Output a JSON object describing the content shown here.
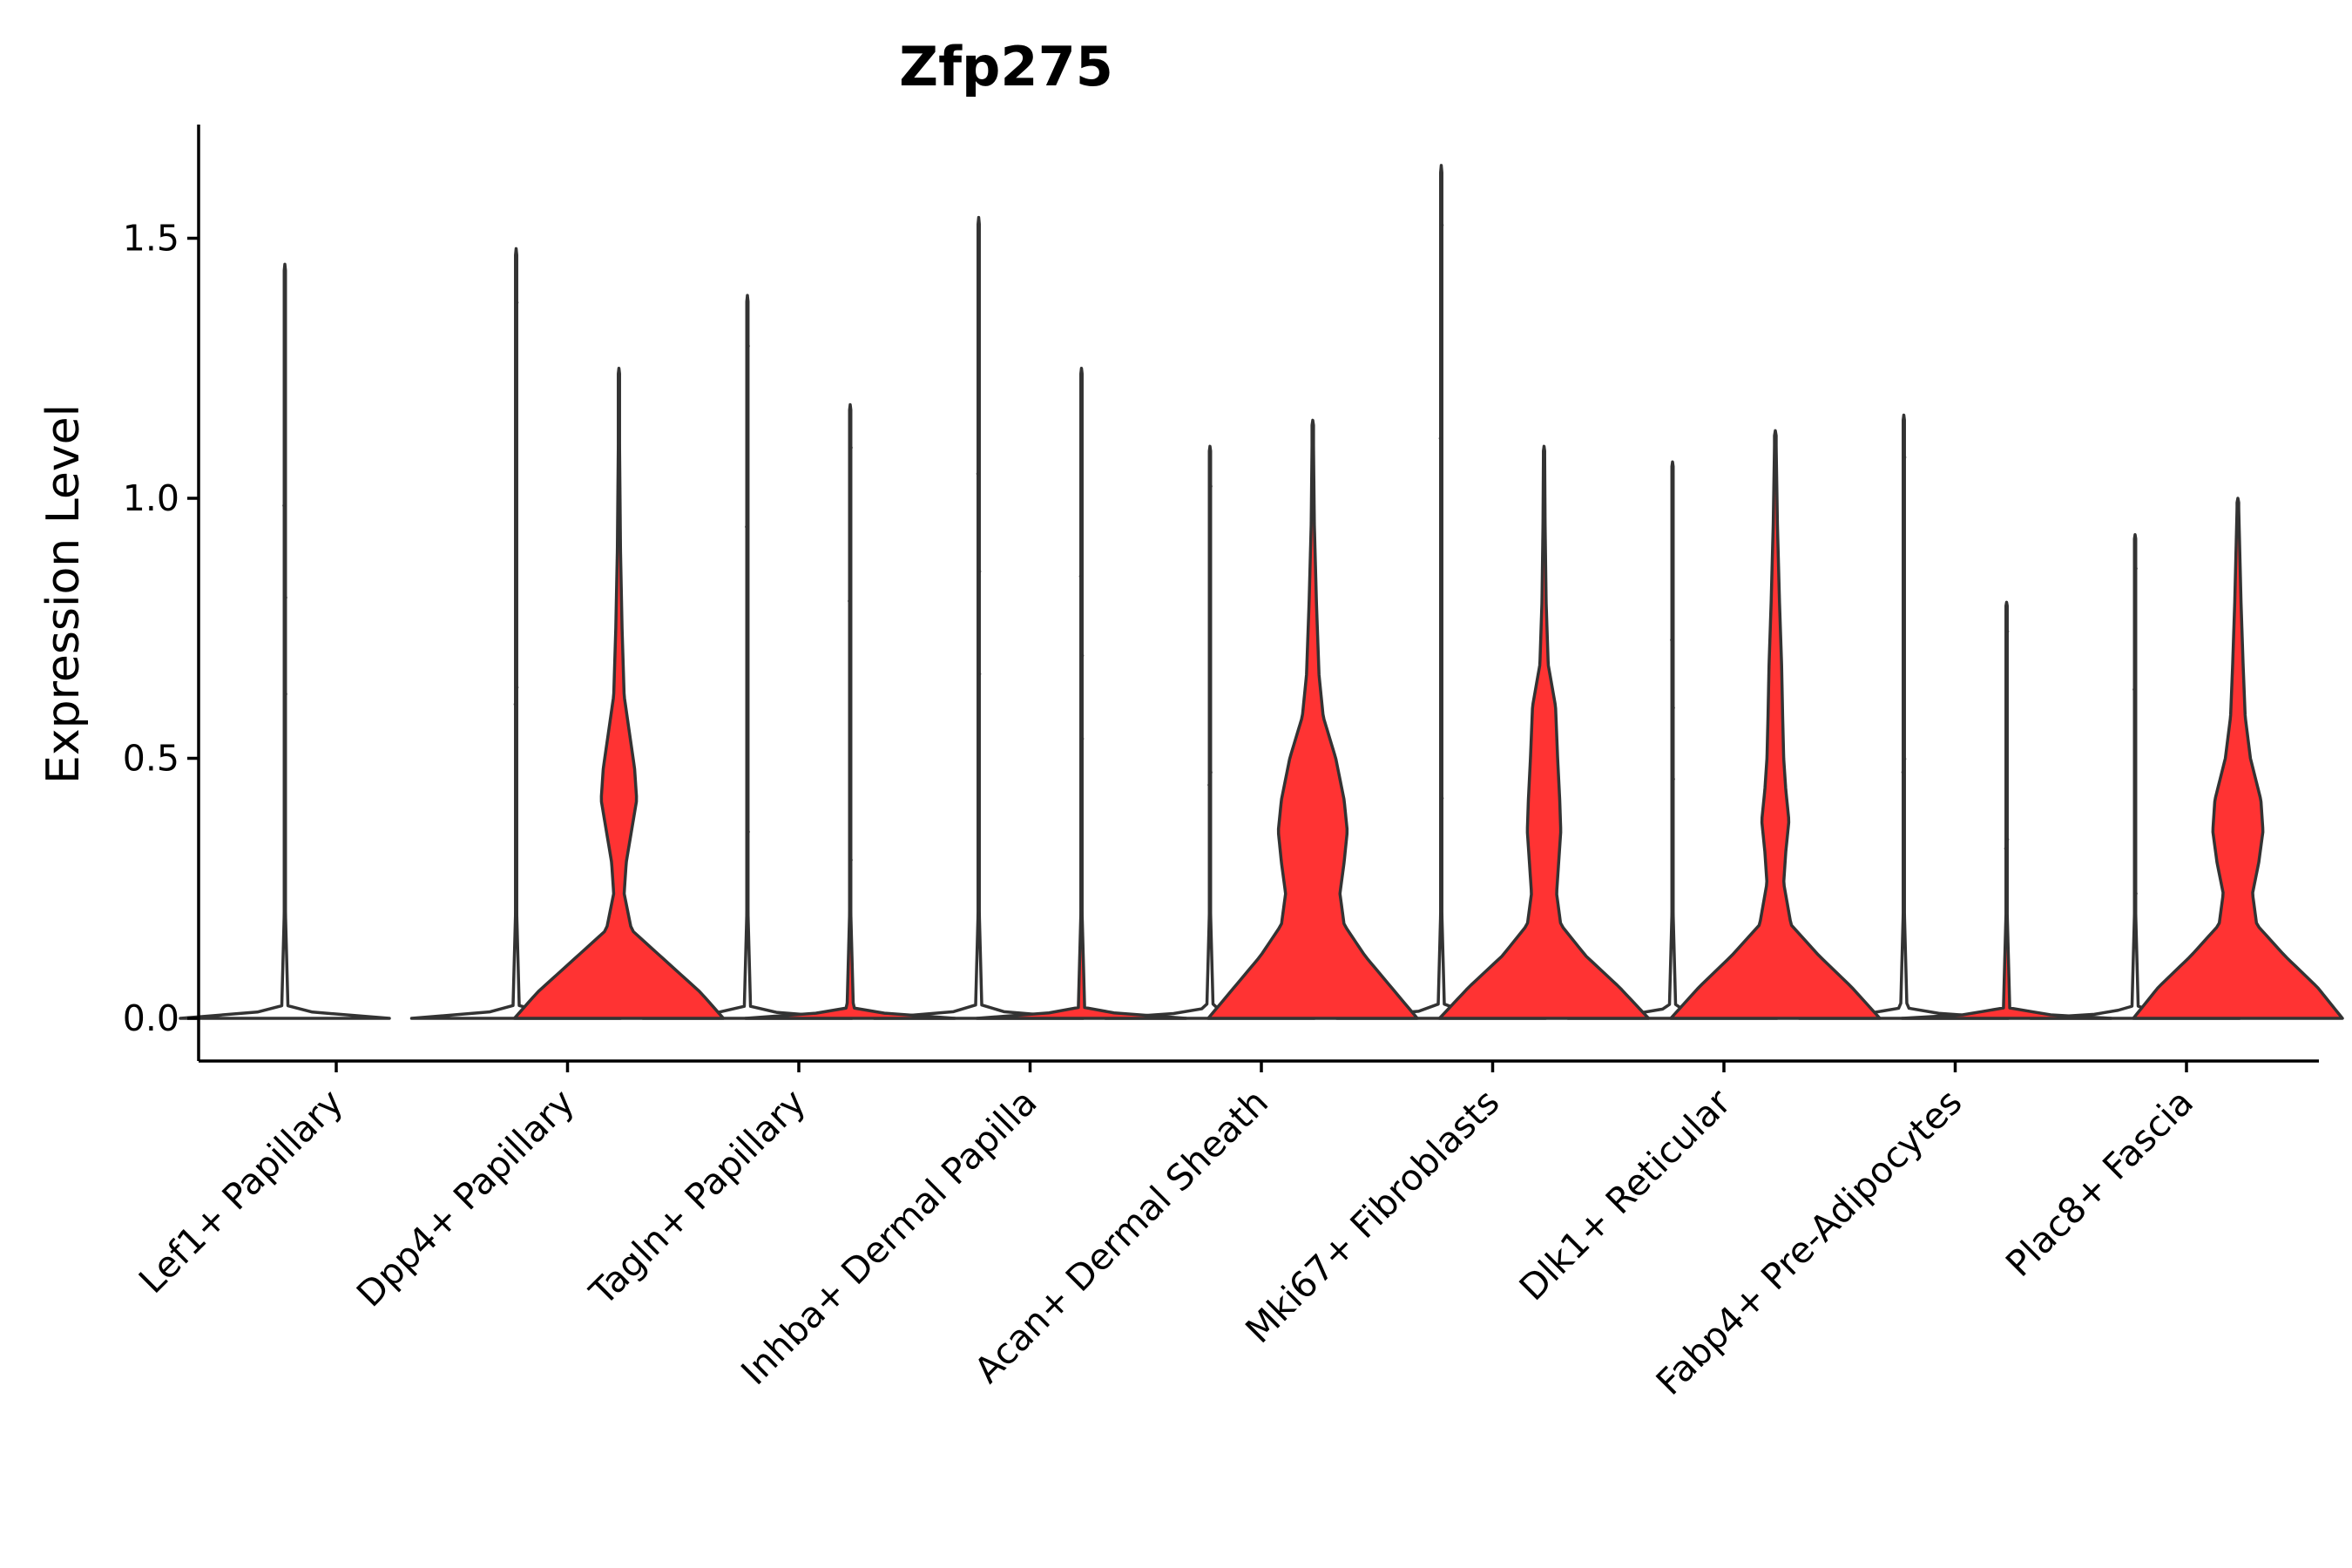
{
  "chart_data": {
    "type": "violin",
    "title": "Zfp275",
    "xlabel": "",
    "ylabel": "Expression Level",
    "ylim": [
      -0.08,
      1.72
    ],
    "yticks": [
      0.0,
      0.5,
      1.0,
      1.5
    ],
    "ytick_labels": [
      "0.0",
      "0.5",
      "1.0",
      "1.5"
    ],
    "categories": [
      "Lef1+ Papillary",
      "Dpp4+ Papillary",
      "Tagln+ Papillary",
      "Inhba+ Dermal Papilla",
      "Acan+ Dermal Sheath",
      "Mki67+ Fibroblasts",
      "Dlk1+ Reticular",
      "Fabp4+ Pre-Adipocytes",
      "Plac8+ Fascia"
    ],
    "grid": false,
    "legend": "none",
    "series": [
      {
        "name": "group 1",
        "color": "#ffffff",
        "max_values": [
          1.45,
          1.48,
          1.39,
          1.54,
          1.1,
          1.64,
          1.07,
          1.16,
          0.93
        ]
      },
      {
        "name": "group 2",
        "color": "#ff3333",
        "max_values": [
          null,
          1.25,
          1.18,
          1.25,
          1.15,
          1.1,
          1.13,
          0.8,
          1.0
        ]
      }
    ],
    "distributions": {
      "flat": [
        [
          0,
          1.0
        ],
        [
          0.004,
          0.5
        ],
        [
          0.02,
          0.03
        ],
        [
          0.2,
          0.006
        ]
      ],
      "dpp4": [
        [
          0,
          1.0
        ],
        [
          0.05,
          0.78
        ],
        [
          0.11,
          0.45
        ],
        [
          0.17,
          0.12
        ],
        [
          0.24,
          0.05
        ],
        [
          0.3,
          0.07
        ],
        [
          0.36,
          0.12
        ],
        [
          0.42,
          0.17
        ],
        [
          0.48,
          0.15
        ],
        [
          0.55,
          0.1
        ],
        [
          0.62,
          0.05
        ],
        [
          0.75,
          0.03
        ],
        [
          0.9,
          0.015
        ],
        [
          1.1,
          0.006
        ]
      ],
      "acan": [
        [
          0,
          1.0
        ],
        [
          0.06,
          0.75
        ],
        [
          0.12,
          0.5
        ],
        [
          0.18,
          0.3
        ],
        [
          0.24,
          0.26
        ],
        [
          0.3,
          0.3
        ],
        [
          0.36,
          0.33
        ],
        [
          0.42,
          0.3
        ],
        [
          0.5,
          0.22
        ],
        [
          0.58,
          0.1
        ],
        [
          0.66,
          0.06
        ],
        [
          0.8,
          0.035
        ],
        [
          0.95,
          0.015
        ],
        [
          1.1,
          0.007
        ]
      ],
      "mki67": [
        [
          0,
          1.0
        ],
        [
          0.06,
          0.72
        ],
        [
          0.12,
          0.4
        ],
        [
          0.18,
          0.16
        ],
        [
          0.24,
          0.12
        ],
        [
          0.3,
          0.14
        ],
        [
          0.36,
          0.16
        ],
        [
          0.42,
          0.15
        ],
        [
          0.5,
          0.13
        ],
        [
          0.6,
          0.11
        ],
        [
          0.68,
          0.04
        ],
        [
          0.8,
          0.02
        ],
        [
          0.95,
          0.01
        ],
        [
          1.08,
          0.006
        ]
      ],
      "dlk1": [
        [
          0,
          1.0
        ],
        [
          0.06,
          0.73
        ],
        [
          0.12,
          0.42
        ],
        [
          0.18,
          0.15
        ],
        [
          0.26,
          0.08
        ],
        [
          0.32,
          0.1
        ],
        [
          0.38,
          0.13
        ],
        [
          0.44,
          0.1
        ],
        [
          0.5,
          0.08
        ],
        [
          0.58,
          0.07
        ],
        [
          0.68,
          0.06
        ],
        [
          0.8,
          0.04
        ],
        [
          0.95,
          0.02
        ],
        [
          1.1,
          0.008
        ]
      ],
      "plac8": [
        [
          0,
          1.0
        ],
        [
          0.06,
          0.76
        ],
        [
          0.12,
          0.45
        ],
        [
          0.18,
          0.18
        ],
        [
          0.24,
          0.14
        ],
        [
          0.3,
          0.2
        ],
        [
          0.36,
          0.24
        ],
        [
          0.42,
          0.22
        ],
        [
          0.5,
          0.12
        ],
        [
          0.58,
          0.07
        ],
        [
          0.68,
          0.05
        ],
        [
          0.8,
          0.03
        ],
        [
          0.98,
          0.008
        ]
      ]
    },
    "violin_shapes": {
      "group 1": [
        "flat",
        "flat",
        "flat",
        "flat",
        "flat",
        "flat",
        "flat",
        "flat",
        "flat"
      ],
      "group 2": [
        null,
        "dpp4",
        "flat",
        "flat",
        "acan",
        "mki67",
        "dlk1",
        "flat",
        "plac8"
      ]
    }
  }
}
